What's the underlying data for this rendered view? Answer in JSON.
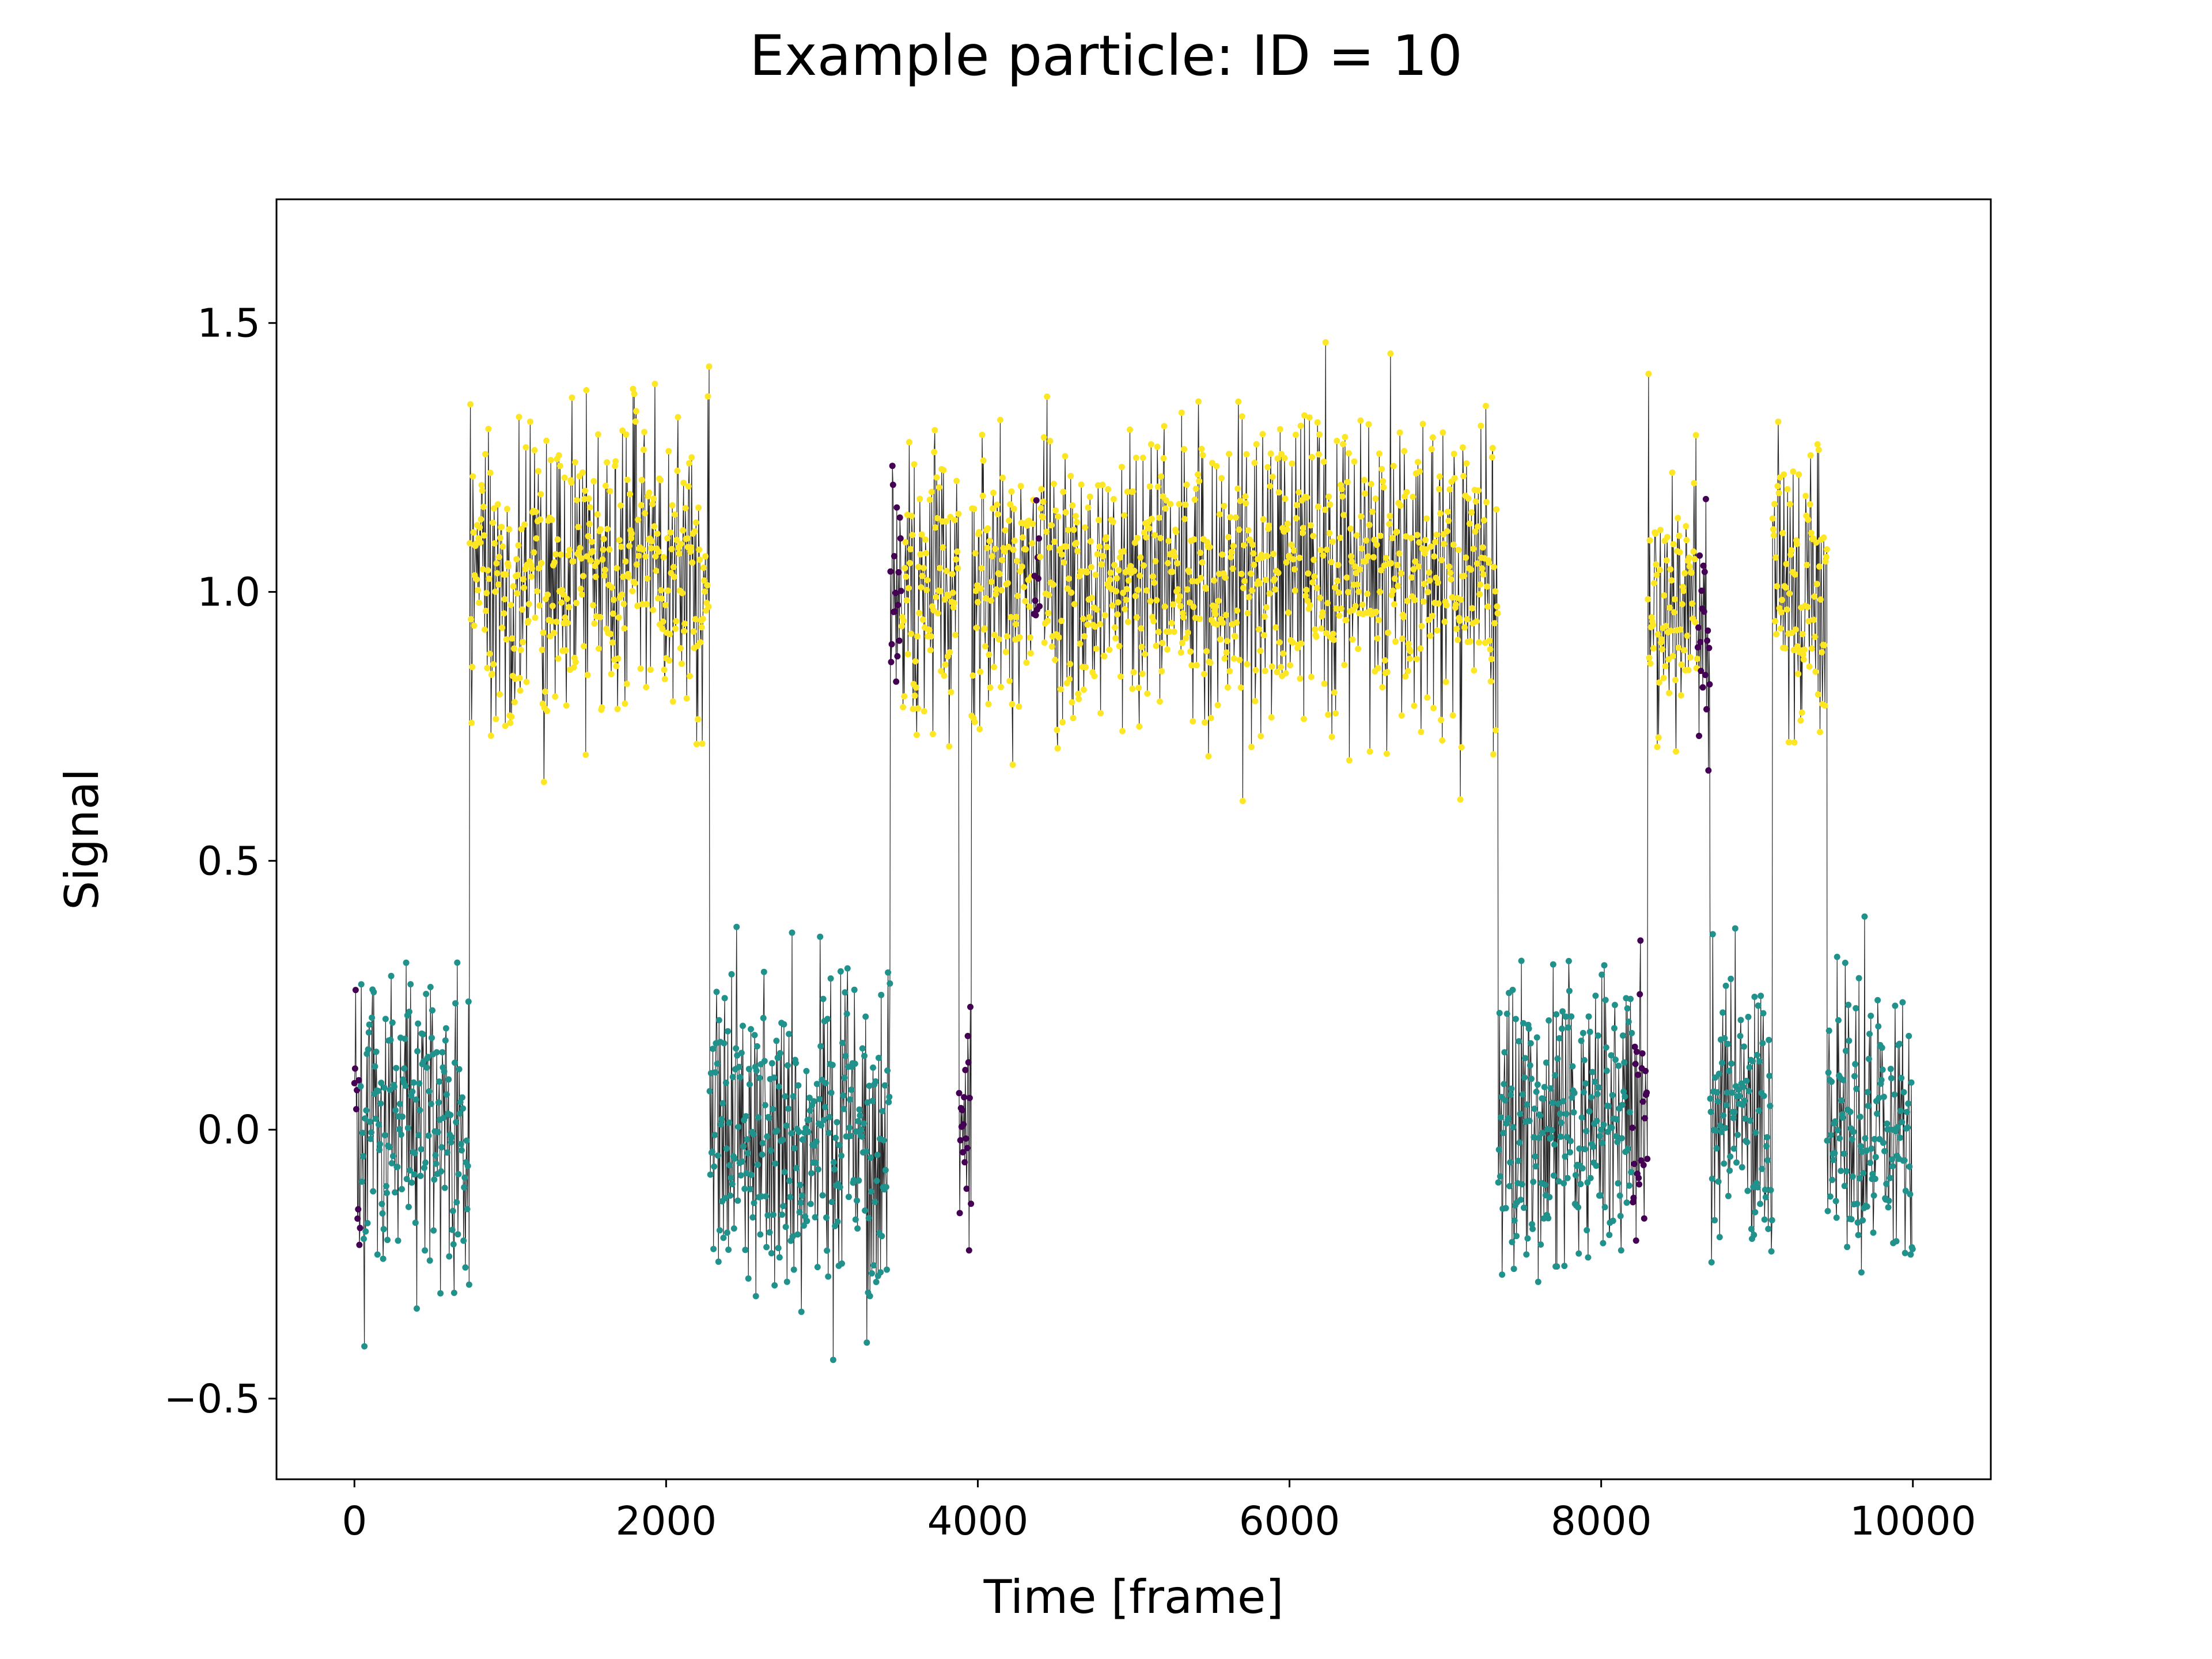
{
  "chart_data": {
    "type": "scatter",
    "title": "Example particle: ID = 10",
    "xlabel": "Time [frame]",
    "ylabel": "Signal",
    "xlim": [
      -500,
      10500
    ],
    "ylim": [
      -0.65,
      1.73
    ],
    "grid": false,
    "legend": "none",
    "x_ticks": [
      {
        "value": 0,
        "label": "0"
      },
      {
        "value": 2000,
        "label": "2000"
      },
      {
        "value": 4000,
        "label": "4000"
      },
      {
        "value": 6000,
        "label": "6000"
      },
      {
        "value": 8000,
        "label": "8000"
      },
      {
        "value": 10000,
        "label": "10000"
      }
    ],
    "y_ticks": [
      {
        "value": -0.5,
        "label": "−0.5"
      },
      {
        "value": 0.0,
        "label": "0.0"
      },
      {
        "value": 0.5,
        "label": "0.5"
      },
      {
        "value": 1.0,
        "label": "1.0"
      },
      {
        "value": 1.5,
        "label": "1.5"
      }
    ],
    "colors": {
      "low_state": "#21918c",
      "high_state": "#fde725",
      "transition": "#440154",
      "trace_line": "#000000"
    },
    "n_frames": 10000,
    "segments": [
      {
        "start": 0,
        "end": 740,
        "level": 0.0,
        "state": "low",
        "noise": 0.13
      },
      {
        "start": 740,
        "end": 2280,
        "level": 1.03,
        "state": "high",
        "noise": 0.14
      },
      {
        "start": 2280,
        "end": 3440,
        "level": 0.0,
        "state": "low",
        "noise": 0.14
      },
      {
        "start": 3440,
        "end": 3880,
        "level": 1.0,
        "state": "high",
        "noise": 0.14
      },
      {
        "start": 3880,
        "end": 3960,
        "level": 0.0,
        "state": "transition",
        "noise": 0.15
      },
      {
        "start": 3960,
        "end": 7340,
        "level": 1.03,
        "state": "high",
        "noise": 0.14
      },
      {
        "start": 7340,
        "end": 8300,
        "level": 0.0,
        "state": "low",
        "noise": 0.14
      },
      {
        "start": 8300,
        "end": 8700,
        "level": 0.97,
        "state": "high",
        "noise": 0.14
      },
      {
        "start": 8700,
        "end": 9100,
        "level": 0.03,
        "state": "low",
        "noise": 0.13
      },
      {
        "start": 9100,
        "end": 9450,
        "level": 1.0,
        "state": "high",
        "noise": 0.14
      },
      {
        "start": 9450,
        "end": 10000,
        "level": 0.0,
        "state": "low",
        "noise": 0.14
      }
    ],
    "transition_windows": [
      {
        "start": 0,
        "end": 40
      },
      {
        "start": 3440,
        "end": 3510
      },
      {
        "start": 3880,
        "end": 3960
      },
      {
        "start": 4360,
        "end": 4400
      },
      {
        "start": 8200,
        "end": 8300
      },
      {
        "start": 8620,
        "end": 8700
      }
    ]
  }
}
